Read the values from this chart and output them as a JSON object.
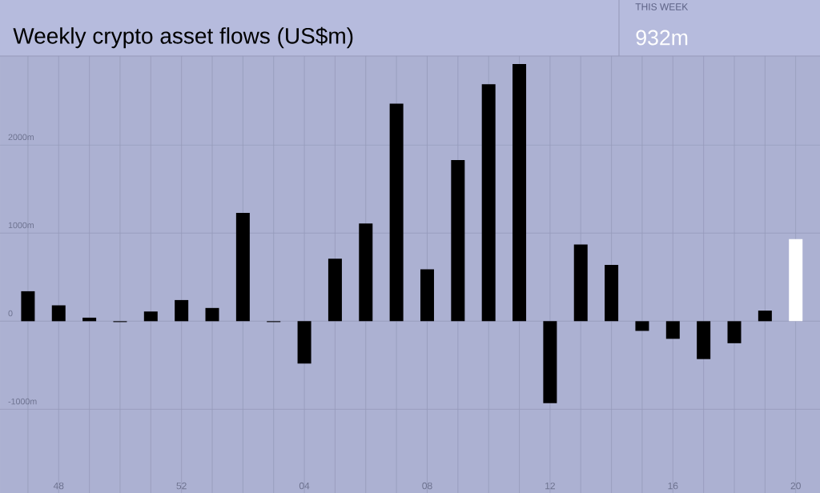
{
  "chart_data": {
    "type": "bar",
    "title": "Weekly crypto asset flows (US$m)",
    "categories": [
      null,
      "48",
      null,
      null,
      null,
      "52",
      null,
      null,
      null,
      "04",
      null,
      null,
      null,
      "08",
      null,
      null,
      null,
      "12",
      null,
      null,
      null,
      "16",
      null,
      null,
      null,
      "20"
    ],
    "values": [
      340,
      180,
      40,
      -10,
      110,
      240,
      150,
      1230,
      -10,
      -480,
      710,
      1110,
      2470,
      590,
      1830,
      2690,
      2920,
      -930,
      870,
      640,
      -110,
      -200,
      -430,
      -250,
      120,
      932
    ],
    "colors": [
      "#000000",
      "#000000",
      "#000000",
      "#000000",
      "#000000",
      "#000000",
      "#000000",
      "#000000",
      "#000000",
      "#000000",
      "#000000",
      "#000000",
      "#000000",
      "#000000",
      "#000000",
      "#000000",
      "#000000",
      "#000000",
      "#000000",
      "#000000",
      "#000000",
      "#000000",
      "#000000",
      "#000000",
      "#000000",
      "#ffffff"
    ],
    "ylim": [
      -1950,
      3010
    ],
    "yticks": [
      {
        "value": -1000,
        "label": "-1000m"
      },
      0,
      {
        "value": 1000,
        "label": "1000m"
      },
      {
        "value": 2000,
        "label": "2000m"
      }
    ],
    "grid": true,
    "annotations": [
      "THIS WEEK",
      "932m"
    ]
  }
}
